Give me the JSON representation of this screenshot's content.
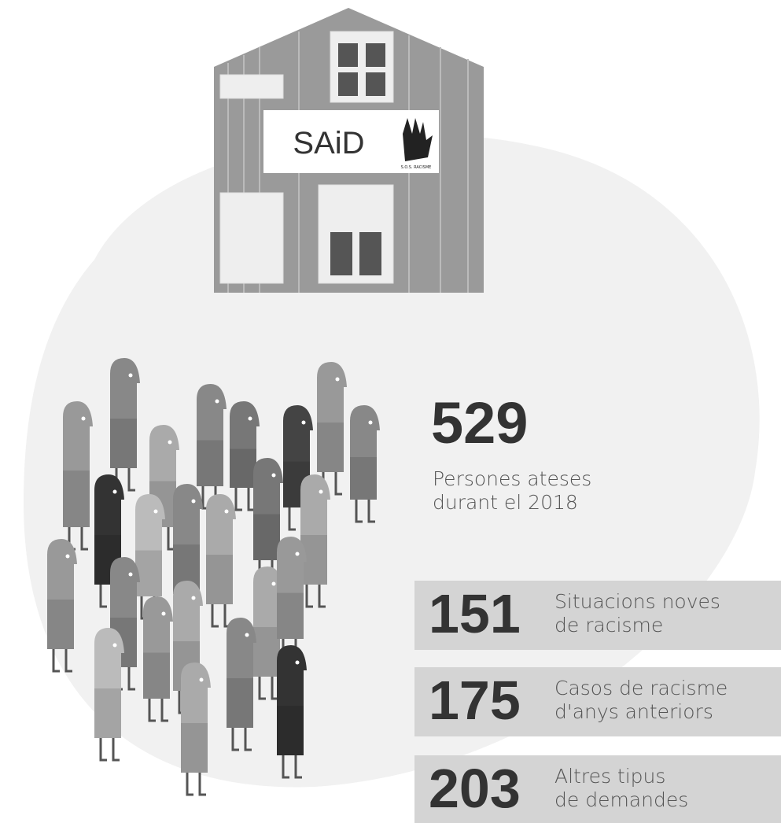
{
  "sign": {
    "title": "SAiD",
    "logo": "S.O.S. RACISME"
  },
  "main": {
    "number": "529",
    "lines": [
      "Persones ateses",
      "durant el 2018"
    ]
  },
  "rows": [
    {
      "number": "151",
      "lines": [
        "Situacions noves",
        "de racisme"
      ]
    },
    {
      "number": "175",
      "lines": [
        "Casos de racisme",
        "d'anys anteriors"
      ]
    },
    {
      "number": "203",
      "lines": [
        "Altres tipus",
        "de demandes"
      ]
    }
  ]
}
